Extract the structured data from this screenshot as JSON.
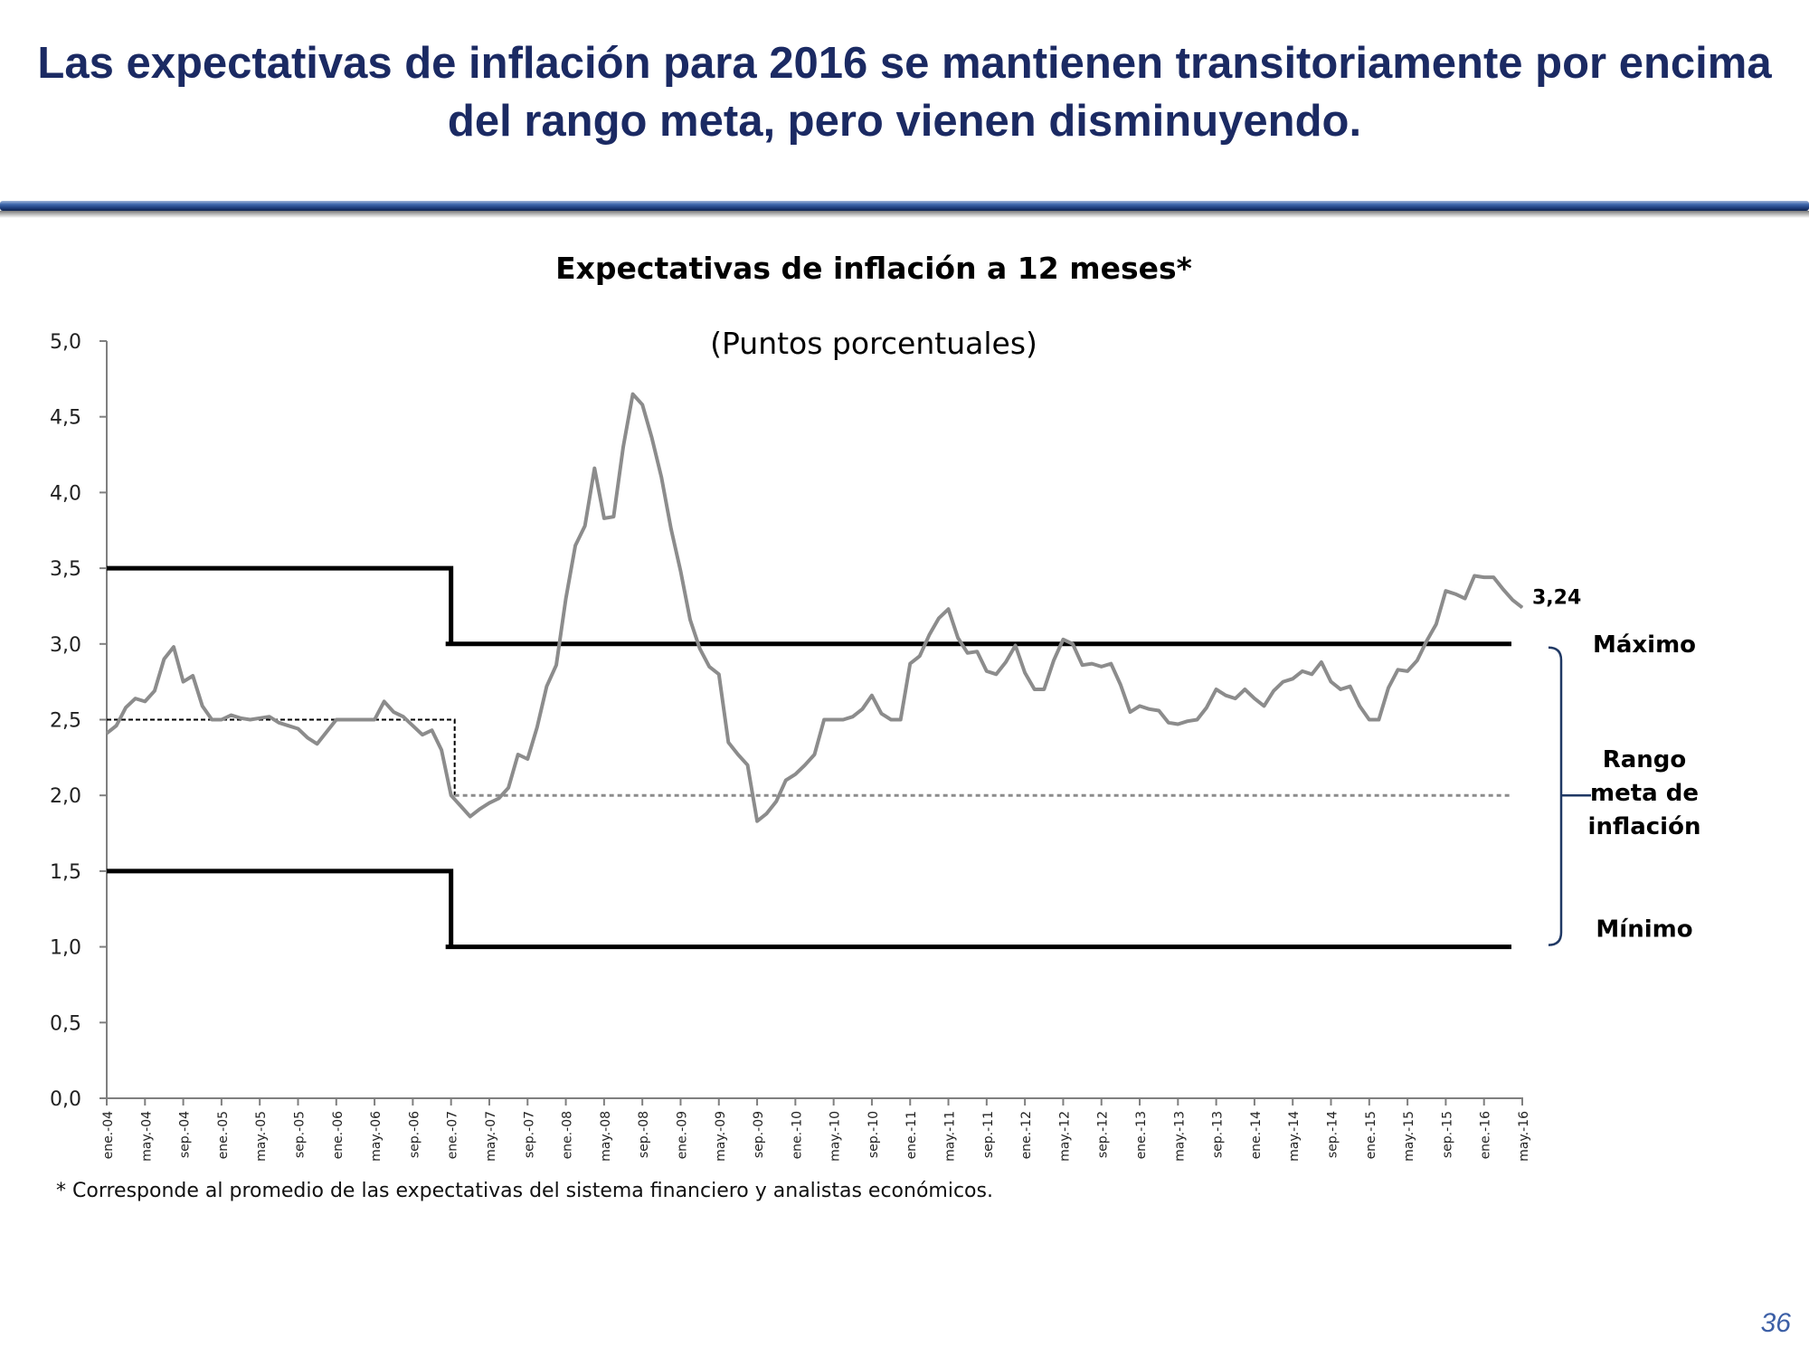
{
  "slide": {
    "title_line1": "Las expectativas de inflación para 2016 se mantienen transitoriamente por encima",
    "title_line2": "del rango meta, pero vienen disminuyendo.",
    "footnote": "* Corresponde al promedio de las expectativas del sistema financiero y analistas económicos.",
    "page_number": "36",
    "title_color": "#1b2a63",
    "accent_color": "#2f5597"
  },
  "chart_data": {
    "type": "line",
    "title": "Expectativas de inflación a 12 meses*",
    "subtitle": "(Puntos porcentuales)",
    "ylim": [
      0,
      5
    ],
    "yticks": [
      "0,0",
      "0,5",
      "1,0",
      "1,5",
      "2,0",
      "2,5",
      "3,0",
      "3,5",
      "4,0",
      "4,5",
      "5,0"
    ],
    "x_tick_labels": [
      "ene.-04",
      "may.-04",
      "sep.-04",
      "ene.-05",
      "may.-05",
      "sep.-05",
      "ene.-06",
      "may.-06",
      "sep.-06",
      "ene.-07",
      "may.-07",
      "sep.-07",
      "ene.-08",
      "may.-08",
      "sep.-08",
      "ene.-09",
      "may.-09",
      "sep.-09",
      "ene.-10",
      "may.-10",
      "sep.-10",
      "ene.-11",
      "may.-11",
      "sep.-11",
      "ene.-12",
      "may.-12",
      "sep.-12",
      "ene.-13",
      "may.-13",
      "sep.-13",
      "ene.-14",
      "may.-14",
      "sep.-14",
      "ene.-15",
      "may.-15",
      "sep.-15",
      "ene.-16",
      "may.-16"
    ],
    "x_start": "2004-01",
    "series": [
      {
        "values": [
          2.41,
          2.46,
          2.58,
          2.64,
          2.62,
          2.69,
          2.9,
          2.98,
          2.75,
          2.79,
          2.59,
          2.5,
          2.5,
          2.53,
          2.51,
          2.5,
          2.51,
          2.52,
          2.48,
          2.46,
          2.44,
          2.38,
          2.34,
          2.42,
          2.5,
          2.5,
          2.5,
          2.5,
          2.5,
          2.62,
          2.55,
          2.52,
          2.46,
          2.4,
          2.43,
          2.3,
          2.0,
          1.93,
          1.86,
          1.91,
          1.95,
          1.98,
          2.05,
          2.27,
          2.24,
          2.45,
          2.72,
          2.86,
          3.3,
          3.65,
          3.78,
          4.16,
          3.83,
          3.84,
          4.3,
          4.65,
          4.58,
          4.36,
          4.1,
          3.76,
          3.48,
          3.16,
          2.97,
          2.85,
          2.8,
          2.35,
          2.27,
          2.2,
          1.83,
          1.88,
          1.96,
          2.1,
          2.14,
          2.2,
          2.27,
          2.5,
          2.5,
          2.5,
          2.52,
          2.57,
          2.66,
          2.54,
          2.5,
          2.5,
          2.87,
          2.92,
          3.06,
          3.17,
          3.23,
          3.04,
          2.94,
          2.95,
          2.82,
          2.8,
          2.88,
          2.99,
          2.81,
          2.7,
          2.7,
          2.89,
          3.03,
          3.0,
          2.86,
          2.87,
          2.85,
          2.87,
          2.73,
          2.55,
          2.59,
          2.57,
          2.56,
          2.48,
          2.47,
          2.49,
          2.5,
          2.58,
          2.7,
          2.66,
          2.64,
          2.7,
          2.64,
          2.59,
          2.69,
          2.75,
          2.77,
          2.82,
          2.8,
          2.88,
          2.75,
          2.7,
          2.72,
          2.59,
          2.5,
          2.5,
          2.71,
          2.83,
          2.82,
          2.89,
          3.02,
          3.13,
          3.35,
          3.33,
          3.3,
          3.45,
          3.44,
          3.44,
          3.36,
          3.29,
          3.24
        ],
        "color": "#8c8c8c"
      }
    ],
    "last_value_label": "3,24",
    "target_range": {
      "max_upto_2006": 3.5,
      "max_from_2007": 3.0,
      "min_upto_2006": 1.5,
      "min_from_2007": 1.0,
      "center_upto_2006": 2.5,
      "center_from_2007": 2.0,
      "change_date": "ene.-07",
      "label_max": "Máximo",
      "label_min": "Mínimo",
      "label_range_lines": [
        "Rango",
        "meta de",
        "inflación"
      ]
    }
  }
}
